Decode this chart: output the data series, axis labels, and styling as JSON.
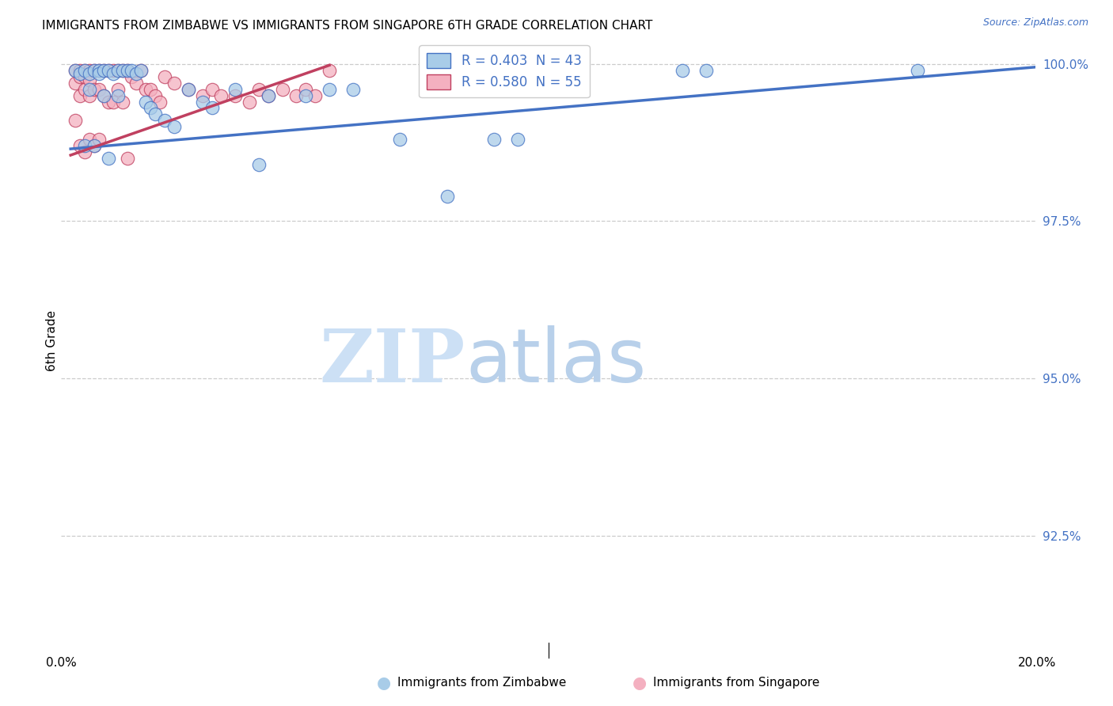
{
  "title": "IMMIGRANTS FROM ZIMBABWE VS IMMIGRANTS FROM SINGAPORE 6TH GRADE CORRELATION CHART",
  "source": "Source: ZipAtlas.com",
  "ylabel": "6th Grade",
  "ytick_labels": [
    "100.0%",
    "97.5%",
    "95.0%",
    "92.5%"
  ],
  "ytick_values": [
    1.0,
    0.975,
    0.95,
    0.925
  ],
  "xlim_left_label": "0.0%",
  "xlim_right_label": "20.0%",
  "ylim": [
    0.908,
    1.004
  ],
  "xlim": [
    -0.002,
    0.205
  ],
  "color_zimbabwe_fill": "#a8cce8",
  "color_zimbabwe_edge": "#4472c4",
  "color_singapore_fill": "#f4b0c0",
  "color_singapore_edge": "#c04060",
  "line_color_zimbabwe": "#4472c4",
  "line_color_singapore": "#c04060",
  "legend_zim_label": "R = 0.403  N = 43",
  "legend_sin_label": "R = 0.580  N = 55",
  "legend_text_color": "#4472c4",
  "grid_color": "#cccccc",
  "title_fontsize": 11,
  "tick_fontsize": 11,
  "legend_fontsize": 12,
  "zim_trendline_x": [
    0.0,
    0.205
  ],
  "zim_trendline_y": [
    0.9865,
    0.9995
  ],
  "sin_trendline_x": [
    0.0,
    0.055
  ],
  "sin_trendline_y": [
    0.9855,
    0.9998
  ],
  "zimbabwe_x": [
    0.001,
    0.002,
    0.003,
    0.003,
    0.004,
    0.004,
    0.005,
    0.005,
    0.006,
    0.006,
    0.007,
    0.007,
    0.008,
    0.008,
    0.009,
    0.01,
    0.01,
    0.011,
    0.012,
    0.013,
    0.014,
    0.015,
    0.016,
    0.017,
    0.018,
    0.02,
    0.022,
    0.025,
    0.028,
    0.03,
    0.035,
    0.04,
    0.042,
    0.05,
    0.055,
    0.06,
    0.07,
    0.08,
    0.09,
    0.095,
    0.13,
    0.135,
    0.18
  ],
  "zimbabwe_y": [
    0.999,
    0.9985,
    0.999,
    0.987,
    0.9985,
    0.996,
    0.999,
    0.987,
    0.999,
    0.9985,
    0.999,
    0.995,
    0.999,
    0.985,
    0.9985,
    0.999,
    0.995,
    0.999,
    0.999,
    0.999,
    0.9985,
    0.999,
    0.994,
    0.993,
    0.992,
    0.991,
    0.99,
    0.996,
    0.994,
    0.993,
    0.996,
    0.984,
    0.995,
    0.995,
    0.996,
    0.996,
    0.988,
    0.979,
    0.988,
    0.988,
    0.999,
    0.999,
    0.999
  ],
  "singapore_x": [
    0.001,
    0.001,
    0.001,
    0.002,
    0.002,
    0.002,
    0.002,
    0.003,
    0.003,
    0.003,
    0.003,
    0.004,
    0.004,
    0.004,
    0.004,
    0.005,
    0.005,
    0.005,
    0.006,
    0.006,
    0.006,
    0.007,
    0.007,
    0.008,
    0.008,
    0.009,
    0.009,
    0.01,
    0.01,
    0.011,
    0.011,
    0.012,
    0.012,
    0.013,
    0.014,
    0.015,
    0.016,
    0.017,
    0.018,
    0.019,
    0.02,
    0.022,
    0.025,
    0.028,
    0.03,
    0.032,
    0.035,
    0.038,
    0.04,
    0.042,
    0.045,
    0.048,
    0.05,
    0.052,
    0.055
  ],
  "singapore_y": [
    0.999,
    0.997,
    0.991,
    0.999,
    0.998,
    0.995,
    0.987,
    0.999,
    0.998,
    0.996,
    0.986,
    0.999,
    0.9975,
    0.995,
    0.988,
    0.999,
    0.996,
    0.987,
    0.999,
    0.996,
    0.988,
    0.999,
    0.995,
    0.999,
    0.994,
    0.999,
    0.994,
    0.999,
    0.996,
    0.999,
    0.994,
    0.999,
    0.985,
    0.998,
    0.997,
    0.999,
    0.996,
    0.996,
    0.995,
    0.994,
    0.998,
    0.997,
    0.996,
    0.995,
    0.996,
    0.995,
    0.995,
    0.994,
    0.996,
    0.995,
    0.996,
    0.995,
    0.996,
    0.995,
    0.999
  ]
}
